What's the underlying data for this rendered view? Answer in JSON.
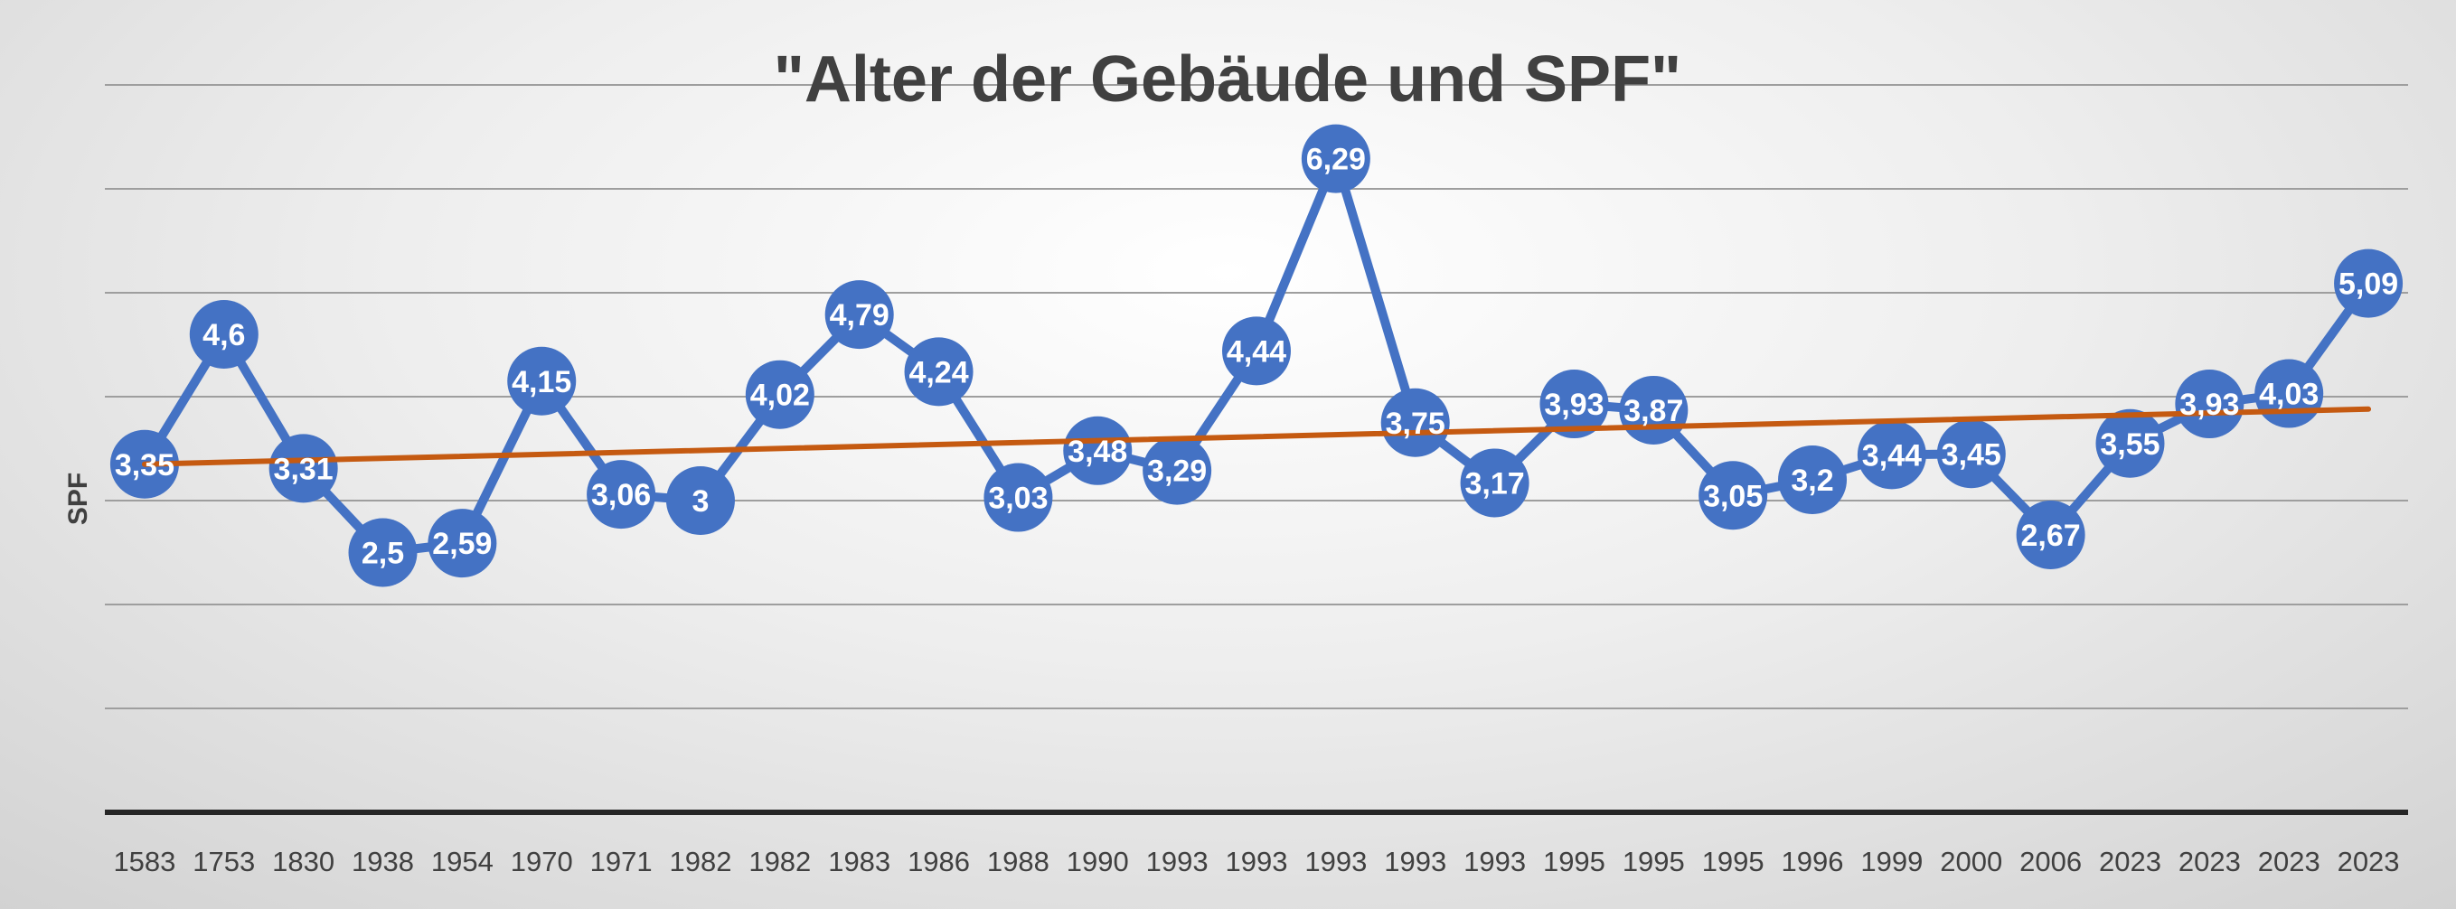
{
  "chart_data": {
    "type": "line",
    "title": "\"Alter der Gebäude und SPF\"",
    "xlabel": "",
    "ylabel": "SPF",
    "ylim": [
      0,
      7
    ],
    "grid": true,
    "categories": [
      "1583",
      "1753",
      "1830",
      "1938",
      "1954",
      "1970",
      "1971",
      "1982",
      "1982",
      "1983",
      "1986",
      "1988",
      "1990",
      "1993",
      "1993",
      "1993",
      "1993",
      "1993",
      "1995",
      "1995",
      "1995",
      "1996",
      "1999",
      "2000",
      "2006",
      "2023",
      "2023",
      "2023",
      "2023"
    ],
    "series": [
      {
        "name": "SPF",
        "color": "#4472C4",
        "values": [
          3.35,
          4.6,
          3.31,
          2.5,
          2.59,
          4.15,
          3.06,
          3,
          4.02,
          4.79,
          4.24,
          3.03,
          3.48,
          3.29,
          4.44,
          6.29,
          3.75,
          3.17,
          3.93,
          3.87,
          3.05,
          3.2,
          3.44,
          3.45,
          2.67,
          3.55,
          3.93,
          4.03,
          5.09
        ],
        "labels": [
          "3,35",
          "4,6",
          "3,31",
          "2,5",
          "2,59",
          "4,15",
          "3,06",
          "3",
          "4,02",
          "4,79",
          "4,24",
          "3,03",
          "3,48",
          "3,29",
          "4,44",
          "6,29",
          "3,75",
          "3,17",
          "3,93",
          "3,87",
          "3,05",
          "3,2",
          "3,44",
          "3,45",
          "2,67",
          "3,55",
          "3,93",
          "4,03",
          "5,09"
        ]
      }
    ],
    "trendline": {
      "type": "linear",
      "color": "#C55A11",
      "start": 3.35,
      "end": 3.88
    }
  }
}
